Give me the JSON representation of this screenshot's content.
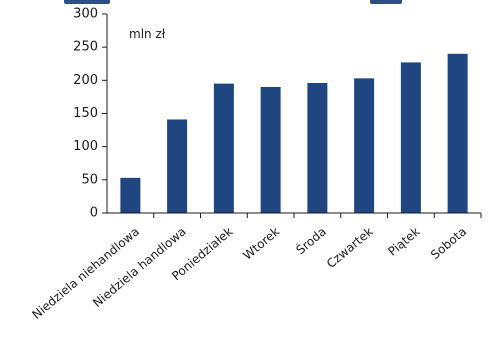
{
  "chart_data": {
    "type": "bar",
    "title": "",
    "xlabel": "",
    "ylabel": "",
    "unit_label": "mln zł",
    "categories": [
      "Niedziela niehandlowa",
      "Niedziela handlowa",
      "Poniedziałek",
      "Wtorek",
      "Środa",
      "Czwartek",
      "Piątek",
      "Sobota"
    ],
    "values": [
      53,
      141,
      195,
      190,
      196,
      203,
      227,
      240
    ],
    "ylim": [
      0,
      300
    ],
    "yticks": [
      0,
      50,
      100,
      150,
      200,
      250,
      300
    ],
    "grid": false,
    "legend": "none",
    "bar_color": "#1f4681",
    "axis_color": "#1b1b1b"
  }
}
